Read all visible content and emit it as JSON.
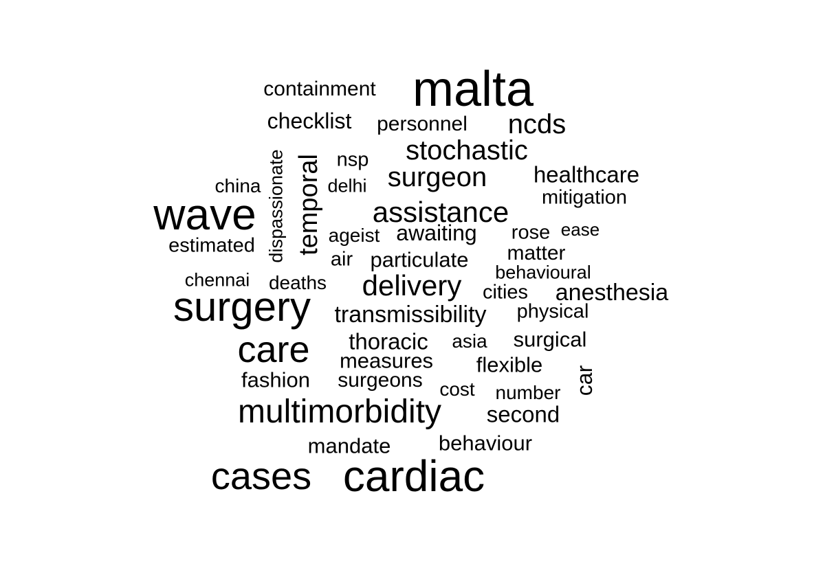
{
  "colors": {
    "text": "#000000",
    "background": "#ffffff"
  },
  "words": [
    {
      "text": "malta",
      "size": "xl"
    },
    {
      "text": "wave",
      "size": "xl"
    },
    {
      "text": "surgery",
      "size": "xl"
    },
    {
      "text": "cardiac",
      "size": "xl"
    },
    {
      "text": "cases",
      "size": "xl"
    },
    {
      "text": "care",
      "size": "xl"
    },
    {
      "text": "multimorbidity",
      "size": "lg"
    },
    {
      "text": "assistance",
      "size": "lg"
    },
    {
      "text": "delivery",
      "size": "lg"
    },
    {
      "text": "stochastic",
      "size": "lg"
    },
    {
      "text": "surgeon",
      "size": "lg"
    },
    {
      "text": "ncds",
      "size": "lg"
    },
    {
      "text": "temporal",
      "size": "lg",
      "orientation": "vertical"
    },
    {
      "text": "transmissibility",
      "size": "md"
    },
    {
      "text": "anesthesia",
      "size": "md"
    },
    {
      "text": "healthcare",
      "size": "md"
    },
    {
      "text": "thoracic",
      "size": "md"
    },
    {
      "text": "second",
      "size": "md"
    },
    {
      "text": "checklist",
      "size": "md"
    },
    {
      "text": "awaiting",
      "size": "md"
    },
    {
      "text": "particulate",
      "size": "md"
    },
    {
      "text": "surgical",
      "size": "md"
    },
    {
      "text": "containment",
      "size": "md"
    },
    {
      "text": "personnel",
      "size": "md"
    },
    {
      "text": "mandate",
      "size": "md"
    },
    {
      "text": "behaviour",
      "size": "md"
    },
    {
      "text": "fashion",
      "size": "md"
    },
    {
      "text": "measures",
      "size": "md"
    },
    {
      "text": "surgeons",
      "size": "md"
    },
    {
      "text": "flexible",
      "size": "md"
    },
    {
      "text": "car",
      "size": "md",
      "orientation": "vertical"
    },
    {
      "text": "matter",
      "size": "sm"
    },
    {
      "text": "mitigation",
      "size": "sm"
    },
    {
      "text": "estimated",
      "size": "sm"
    },
    {
      "text": "rose",
      "size": "sm"
    },
    {
      "text": "physical",
      "size": "sm"
    },
    {
      "text": "cities",
      "size": "sm"
    },
    {
      "text": "air",
      "size": "sm"
    },
    {
      "text": "deaths",
      "size": "sm"
    },
    {
      "text": "number",
      "size": "sm"
    },
    {
      "text": "cost",
      "size": "sm"
    },
    {
      "text": "china",
      "size": "sm"
    },
    {
      "text": "nsp",
      "size": "sm"
    },
    {
      "text": "chennai",
      "size": "sm"
    },
    {
      "text": "behavioural",
      "size": "sm"
    },
    {
      "text": "ageist",
      "size": "sm"
    },
    {
      "text": "delhi",
      "size": "sm"
    },
    {
      "text": "ease",
      "size": "sm"
    },
    {
      "text": "asia",
      "size": "sm"
    },
    {
      "text": "dispassionate",
      "size": "sm",
      "orientation": "vertical"
    }
  ]
}
